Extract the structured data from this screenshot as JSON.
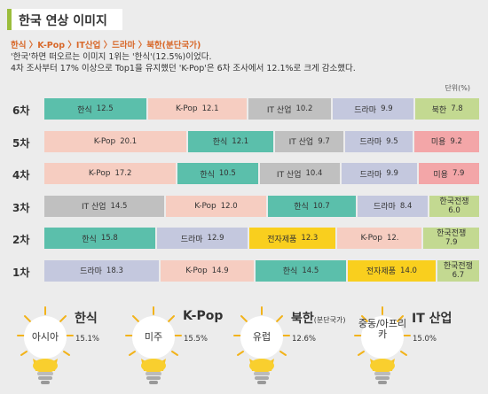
{
  "title": "한국 연상 이미지",
  "summary": {
    "path": "한식 〉K-Pop 〉IT산업 〉드라마 〉북한(분단국가)",
    "line1": "'한국'하면 떠오르는 이미지 1위는 '한식'(12.5%)이었다.",
    "line2": "4차 조사부터 17% 이상으로 Top1을 유지했던 'K-Pop'은 6차 조사에서 12.1%로 크게 감소했다."
  },
  "unit": "단위(%)",
  "colors": {
    "한식": "#5bbfab",
    "K-Pop": "#f6cdc1",
    "IT 산업": "#c0c0c0",
    "드라마": "#c4c8de",
    "북한": "#c3d991",
    "미용": "#f3a6a8",
    "전자제품": "#f9cf1e",
    "한국전쟁": "#c3d991"
  },
  "chart_data": {
    "type": "bar",
    "stacked": true,
    "unit": "단위(%)",
    "rows": [
      {
        "label": "6차",
        "segments": [
          {
            "name": "한식",
            "value": 12.5,
            "text": "12.5"
          },
          {
            "name": "K-Pop",
            "value": 12.1,
            "text": "12.1"
          },
          {
            "name": "IT 산업",
            "value": 10.2,
            "text": "10.2"
          },
          {
            "name": "드라마",
            "value": 9.9,
            "text": "9.9"
          },
          {
            "name": "북한",
            "value": 7.8,
            "text": "7.8"
          }
        ]
      },
      {
        "label": "5차",
        "segments": [
          {
            "name": "K-Pop",
            "value": 20.1,
            "text": "20.1"
          },
          {
            "name": "한식",
            "value": 12.1,
            "text": "12.1"
          },
          {
            "name": "IT 산업",
            "value": 9.7,
            "text": "9.7"
          },
          {
            "name": "드라마",
            "value": 9.5,
            "text": "9.5"
          },
          {
            "name": "미용",
            "value": 9.2,
            "text": "9.2"
          }
        ]
      },
      {
        "label": "4차",
        "segments": [
          {
            "name": "K-Pop",
            "value": 17.2,
            "text": "17.2"
          },
          {
            "name": "한식",
            "value": 10.5,
            "text": "10.5"
          },
          {
            "name": "IT 산업",
            "value": 10.4,
            "text": "10.4"
          },
          {
            "name": "드라마",
            "value": 9.9,
            "text": "9.9"
          },
          {
            "name": "미용",
            "value": 7.9,
            "text": "7.9"
          }
        ]
      },
      {
        "label": "3차",
        "segments": [
          {
            "name": "IT 산업",
            "value": 14.5,
            "text": "14.5"
          },
          {
            "name": "K-Pop",
            "value": 12.0,
            "text": "12.0"
          },
          {
            "name": "한식",
            "value": 10.7,
            "text": "10.7"
          },
          {
            "name": "드라마",
            "value": 8.4,
            "text": "8.4"
          },
          {
            "name": "한국전쟁",
            "value": 6.0,
            "text": "6.0"
          }
        ]
      },
      {
        "label": "2차",
        "segments": [
          {
            "name": "한식",
            "value": 15.8,
            "text": "15.8"
          },
          {
            "name": "드라마",
            "value": 12.9,
            "text": "12.9"
          },
          {
            "name": "전자제품",
            "value": 12.3,
            "text": "12.3"
          },
          {
            "name": "K-Pop",
            "value": 12.0,
            "text": "12."
          },
          {
            "name": "한국전쟁",
            "value": 7.9,
            "text": "7.9"
          }
        ]
      },
      {
        "label": "1차",
        "segments": [
          {
            "name": "드라마",
            "value": 18.3,
            "text": "18.3"
          },
          {
            "name": "K-Pop",
            "value": 14.9,
            "text": "14.9"
          },
          {
            "name": "한식",
            "value": 14.5,
            "text": "14.5"
          },
          {
            "name": "전자제품",
            "value": 14.0,
            "text": "14.0"
          },
          {
            "name": "한국전쟁",
            "value": 6.7,
            "text": "6.7"
          }
        ]
      }
    ]
  },
  "regions": [
    {
      "region": "아시아",
      "item": "한식",
      "item_suffix": "",
      "pct": "15.1%"
    },
    {
      "region": "미주",
      "item": "K-Pop",
      "item_suffix": "",
      "pct": "15.5%"
    },
    {
      "region": "유럽",
      "item": "북한",
      "item_suffix": "(분단국가)",
      "pct": "12.6%"
    },
    {
      "region": "중동/아프리카",
      "item": "IT 산업",
      "item_suffix": "",
      "pct": "15.0%"
    }
  ]
}
